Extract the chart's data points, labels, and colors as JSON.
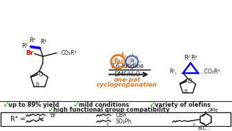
{
  "bg_color": "#ffffff",
  "orange": "#e87722",
  "green": "#2db82d",
  "blue": "#0000ee",
  "red": "#cc0000",
  "black": "#1a1a1a",
  "reaction_label1": "2,6-lutidine",
  "reaction_label2": "DMF/H₂O",
  "reaction_label3": "one-pot",
  "reaction_label4": "cyclopropanation",
  "bullet1": "up to 89% yield",
  "bullet2": "mild conditions",
  "bullet3": "variety of olefins",
  "bullet4": "high functional group compatibility"
}
